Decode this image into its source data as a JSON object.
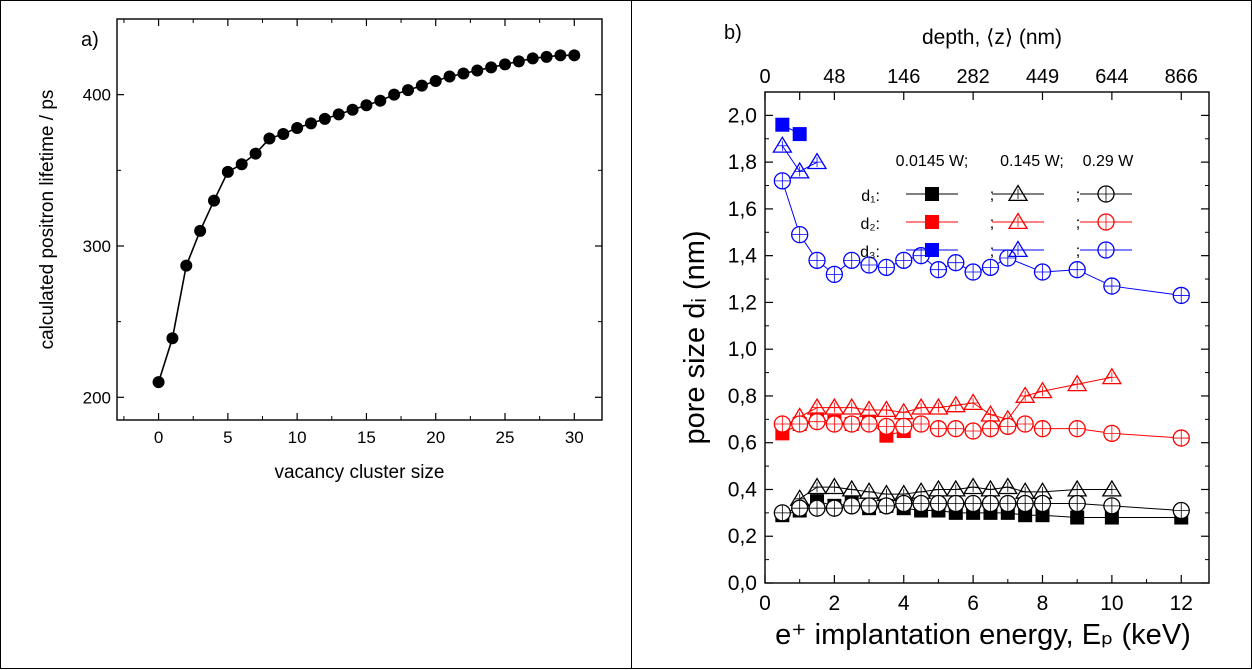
{
  "chart_data": [
    {
      "type": "line",
      "panel_label": "a)",
      "xlabel": "vacancy cluster size",
      "ylabel": "calculated positron lifetime / ps",
      "xlim": [
        -3,
        32
      ],
      "ylim": [
        185,
        450
      ],
      "x_ticks": [
        0,
        5,
        10,
        15,
        20,
        25,
        30
      ],
      "y_ticks": [
        200,
        300,
        400
      ],
      "x_tick_labels": [
        "0",
        "5",
        "10",
        "15",
        "20",
        "25",
        "30"
      ],
      "y_tick_labels": [
        "200",
        "300",
        "400"
      ],
      "grid": false,
      "series": [
        {
          "color": "#000000",
          "marker": "filled-circle",
          "x": [
            0,
            1,
            2,
            3,
            4,
            5,
            6,
            7,
            8,
            9,
            10,
            11,
            12,
            13,
            14,
            15,
            16,
            17,
            18,
            19,
            20,
            21,
            22,
            23,
            24,
            25,
            26,
            27,
            28,
            29,
            30
          ],
          "y": [
            210,
            239,
            287,
            310,
            330,
            349,
            354,
            361,
            371,
            374,
            378,
            381,
            384,
            387,
            390,
            393,
            396,
            400,
            403,
            406,
            409,
            412,
            414,
            416,
            418,
            420,
            422,
            424,
            425,
            426,
            426
          ]
        }
      ]
    },
    {
      "type": "scatter",
      "panel_label": "b)",
      "xlabel": "e⁺ implantation energy, Eₚ (keV)",
      "ylabel": "pore size dᵢ (nm)",
      "top_xlabel": "depth, ⟨z⟩ (nm)",
      "xlim": [
        0,
        12.8
      ],
      "ylim": [
        0,
        2.1
      ],
      "x_ticks": [
        0,
        2,
        4,
        6,
        8,
        10,
        12
      ],
      "x_tick_labels": [
        "0",
        "2",
        "4",
        "6",
        "8",
        "10",
        "12"
      ],
      "y_ticks": [
        0,
        0.2,
        0.4,
        0.6,
        0.8,
        1.0,
        1.2,
        1.4,
        1.6,
        1.8,
        2.0
      ],
      "y_tick_labels": [
        "0,0",
        "0,2",
        "0,4",
        "0,6",
        "0,8",
        "1,0",
        "1,2",
        "1,4",
        "1,6",
        "1,8",
        "2,0"
      ],
      "top_ticks_energy": [
        0,
        1,
        2,
        4,
        6,
        8,
        10,
        12
      ],
      "top_tick_labels": [
        "0",
        "",
        "48",
        "146",
        "282",
        "449",
        "644",
        "866"
      ],
      "legend_position": "top-right",
      "legend_headers": [
        "0.0145 W;",
        "0.145 W;",
        "0.29 W"
      ],
      "legend_rows": [
        "d₁:",
        "d₂:",
        "d₃:"
      ],
      "legend_sep": ";",
      "grid": false,
      "series": [
        {
          "name": "d₁ 0.0145 W",
          "color": "#000000",
          "marker": "filled-square",
          "x": [
            0.5,
            1,
            1.5,
            2,
            2.5,
            3,
            3.5,
            4,
            4.5,
            5,
            5.5,
            6,
            6.5,
            7,
            7.5,
            8,
            9,
            10,
            12
          ],
          "y": [
            0.29,
            0.31,
            0.35,
            0.33,
            0.34,
            0.32,
            0.33,
            0.32,
            0.31,
            0.31,
            0.3,
            0.3,
            0.3,
            0.3,
            0.29,
            0.29,
            0.28,
            0.28,
            0.28
          ]
        },
        {
          "name": "d₁ 0.145 W",
          "color": "#000000",
          "marker": "open-triangle",
          "x": [
            1,
            1.5,
            2,
            2.5,
            3,
            3.5,
            4,
            4.5,
            5,
            5.5,
            6,
            6.5,
            7,
            7.5,
            8,
            9,
            10
          ],
          "y": [
            0.36,
            0.41,
            0.41,
            0.4,
            0.39,
            0.38,
            0.38,
            0.39,
            0.4,
            0.4,
            0.41,
            0.4,
            0.41,
            0.39,
            0.39,
            0.4,
            0.4
          ]
        },
        {
          "name": "d₁ 0.29 W",
          "color": "#000000",
          "marker": "open-circle-cross",
          "x": [
            0.5,
            1,
            1.5,
            2,
            2.5,
            3,
            3.5,
            4,
            4.5,
            5,
            5.5,
            6,
            6.5,
            7,
            7.5,
            8,
            9,
            10,
            12
          ],
          "y": [
            0.3,
            0.32,
            0.32,
            0.32,
            0.33,
            0.33,
            0.33,
            0.34,
            0.34,
            0.34,
            0.34,
            0.34,
            0.34,
            0.34,
            0.34,
            0.34,
            0.34,
            0.33,
            0.31
          ]
        },
        {
          "name": "d₂ 0.0145 W",
          "color": "#ff0000",
          "marker": "filled-square",
          "x": [
            0.5,
            1,
            1.5,
            2,
            2.5,
            3,
            3.5,
            4
          ],
          "y": [
            0.64,
            0.68,
            0.7,
            0.69,
            0.68,
            0.69,
            0.63,
            0.65
          ]
        },
        {
          "name": "d₂ 0.145 W",
          "color": "#ff0000",
          "marker": "open-triangle",
          "x": [
            1,
            1.5,
            2,
            2.5,
            3,
            3.5,
            4,
            4.5,
            5,
            5.5,
            6,
            6.5,
            7,
            7.5,
            8,
            9,
            10
          ],
          "y": [
            0.71,
            0.75,
            0.75,
            0.75,
            0.74,
            0.74,
            0.73,
            0.75,
            0.75,
            0.76,
            0.77,
            0.72,
            0.7,
            0.8,
            0.82,
            0.85,
            0.88
          ]
        },
        {
          "name": "d₂ 0.29 W",
          "color": "#ff0000",
          "marker": "open-circle-cross",
          "x": [
            0.5,
            1,
            1.5,
            2,
            2.5,
            3,
            3.5,
            4,
            4.5,
            5,
            5.5,
            6,
            6.5,
            7,
            7.5,
            8,
            9,
            10,
            12
          ],
          "y": [
            0.68,
            0.68,
            0.69,
            0.68,
            0.68,
            0.68,
            0.67,
            0.67,
            0.68,
            0.66,
            0.66,
            0.65,
            0.66,
            0.67,
            0.68,
            0.66,
            0.66,
            0.64,
            0.62
          ]
        },
        {
          "name": "d₃ 0.0145 W",
          "color": "#0000ff",
          "marker": "filled-square",
          "x": [
            0.5,
            1
          ],
          "y": [
            1.96,
            1.92
          ]
        },
        {
          "name": "d₃ 0.145 W",
          "color": "#0000ff",
          "marker": "open-triangle",
          "x": [
            0.5,
            1,
            1.5
          ],
          "y": [
            1.87,
            1.76,
            1.8
          ]
        },
        {
          "name": "d₃ 0.29 W",
          "color": "#0000ff",
          "marker": "open-circle-cross",
          "x": [
            0.5,
            1,
            1.5,
            2,
            2.5,
            3,
            3.5,
            4,
            4.5,
            5,
            5.5,
            6,
            6.5,
            7,
            8,
            9,
            10,
            12
          ],
          "y": [
            1.72,
            1.49,
            1.38,
            1.32,
            1.38,
            1.36,
            1.35,
            1.38,
            1.4,
            1.34,
            1.37,
            1.33,
            1.35,
            1.39,
            1.33,
            1.34,
            1.27,
            1.23
          ]
        }
      ]
    }
  ]
}
